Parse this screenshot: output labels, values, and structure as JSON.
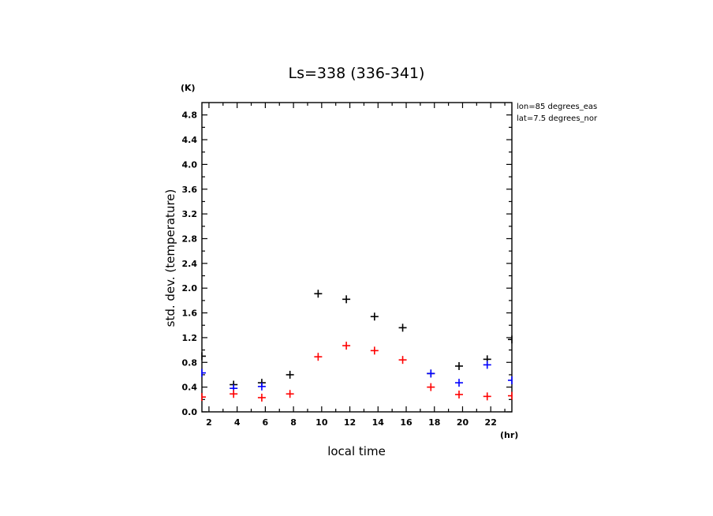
{
  "chart_data": {
    "type": "scatter",
    "title": "Ls=338 (336-341)",
    "xlabel": "local time",
    "ylabel": "std. dev. (temperature)",
    "x_unit": "(hr)",
    "y_unit": "(K)",
    "xlim": [
      1.5,
      23.5
    ],
    "ylim": [
      0,
      5.0
    ],
    "x_ticks": [
      2,
      4,
      6,
      8,
      10,
      12,
      14,
      16,
      18,
      20,
      22
    ],
    "y_ticks": [
      0.0,
      0.4,
      0.8,
      1.2,
      1.6,
      2.0,
      2.4,
      2.8,
      3.2,
      3.6,
      4.0,
      4.4,
      4.8
    ],
    "y_tick_labels": [
      "0.0",
      "0.4",
      "0.8",
      "1.2",
      "1.6",
      "2.0",
      "2.4",
      "2.8",
      "3.2",
      "3.6",
      "4.0",
      "4.4",
      "4.8"
    ],
    "annotations": [
      "lon=85 degrees_eas",
      "lat=7.5 degrees_nor"
    ],
    "series": [
      {
        "color": "#000000",
        "points": [
          [
            1.5,
            0.9
          ],
          [
            3.75,
            0.44
          ],
          [
            5.75,
            0.47
          ],
          [
            7.75,
            0.6
          ],
          [
            9.75,
            1.91
          ],
          [
            11.75,
            1.82
          ],
          [
            13.75,
            1.54
          ],
          [
            15.75,
            1.36
          ],
          [
            17.75,
            0.62
          ],
          [
            19.75,
            0.74
          ],
          [
            21.75,
            0.85
          ],
          [
            23.5,
            1.17
          ]
        ]
      },
      {
        "color": "#0000ff",
        "points": [
          [
            1.5,
            0.63
          ],
          [
            3.75,
            0.38
          ],
          [
            5.75,
            0.41
          ],
          [
            17.75,
            0.62
          ],
          [
            19.75,
            0.47
          ],
          [
            21.75,
            0.76
          ],
          [
            23.5,
            0.51
          ]
        ]
      },
      {
        "color": "#ff0000",
        "points": [
          [
            1.5,
            0.24
          ],
          [
            3.75,
            0.29
          ],
          [
            5.75,
            0.23
          ],
          [
            7.75,
            0.29
          ],
          [
            9.75,
            0.89
          ],
          [
            11.75,
            1.07
          ],
          [
            13.75,
            0.99
          ],
          [
            15.75,
            0.84
          ],
          [
            17.75,
            0.4
          ],
          [
            19.75,
            0.28
          ],
          [
            21.75,
            0.25
          ],
          [
            23.5,
            0.26
          ]
        ]
      }
    ]
  }
}
